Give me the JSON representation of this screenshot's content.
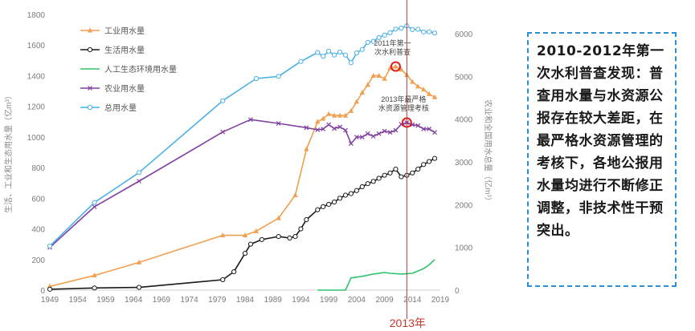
{
  "chart_data": {
    "type": "line",
    "title": "",
    "ylabel": "生活、工业和生态用水量（亿m³）",
    "y2label": "农业和全国用水总量（亿m³）",
    "xlim": [
      1949,
      2019
    ],
    "ylim": [
      0,
      1800
    ],
    "y2lim": [
      0,
      6450
    ],
    "xticks": [
      1949,
      1954,
      1959,
      1964,
      1969,
      1974,
      1979,
      1984,
      1989,
      1994,
      1999,
      2004,
      2009,
      2014,
      2019
    ],
    "yticks": [
      0,
      200,
      400,
      600,
      800,
      1000,
      1200,
      1400,
      1600,
      1800
    ],
    "y2ticks": [
      0,
      1000,
      2000,
      3000,
      4000,
      5000,
      6000
    ],
    "grid": false,
    "legend_position": "top-left",
    "series": [
      {
        "name": "工业用水量",
        "axis": "left",
        "color": "#f0a050",
        "marker": "triangle",
        "points": [
          [
            1949,
            24
          ],
          [
            1957,
            96
          ],
          [
            1965,
            181
          ],
          [
            1980,
            358
          ],
          [
            1984,
            358
          ],
          [
            1986,
            385
          ],
          [
            1990,
            470
          ],
          [
            1993,
            620
          ],
          [
            1995,
            920
          ],
          [
            1997,
            1100
          ],
          [
            1998,
            1120
          ],
          [
            1999,
            1150
          ],
          [
            2000,
            1140
          ],
          [
            2001,
            1140
          ],
          [
            2002,
            1140
          ],
          [
            2003,
            1170
          ],
          [
            2004,
            1230
          ],
          [
            2005,
            1290
          ],
          [
            2006,
            1340
          ],
          [
            2007,
            1400
          ],
          [
            2008,
            1400
          ],
          [
            2009,
            1380
          ],
          [
            2010,
            1450
          ],
          [
            2011,
            1460
          ],
          [
            2012,
            1440
          ],
          [
            2013,
            1405
          ],
          [
            2014,
            1360
          ],
          [
            2015,
            1330
          ],
          [
            2016,
            1310
          ],
          [
            2017,
            1280
          ],
          [
            2018,
            1260
          ]
        ]
      },
      {
        "name": "生活用水量",
        "axis": "left",
        "color": "#1a1a1a",
        "marker": "circle",
        "points": [
          [
            1949,
            6
          ],
          [
            1957,
            14
          ],
          [
            1965,
            18
          ],
          [
            1980,
            68
          ],
          [
            1982,
            120
          ],
          [
            1984,
            240
          ],
          [
            1985,
            300
          ],
          [
            1987,
            330
          ],
          [
            1990,
            350
          ],
          [
            1992,
            340
          ],
          [
            1993,
            350
          ],
          [
            1994,
            400
          ],
          [
            1995,
            460
          ],
          [
            1997,
            525
          ],
          [
            1998,
            545
          ],
          [
            1999,
            560
          ],
          [
            2000,
            575
          ],
          [
            2001,
            600
          ],
          [
            2002,
            620
          ],
          [
            2003,
            630
          ],
          [
            2004,
            650
          ],
          [
            2005,
            675
          ],
          [
            2006,
            695
          ],
          [
            2007,
            710
          ],
          [
            2008,
            730
          ],
          [
            2009,
            750
          ],
          [
            2010,
            765
          ],
          [
            2011,
            790
          ],
          [
            2012,
            740
          ],
          [
            2013,
            750
          ],
          [
            2014,
            765
          ],
          [
            2015,
            790
          ],
          [
            2016,
            820
          ],
          [
            2017,
            840
          ],
          [
            2018,
            860
          ]
        ]
      },
      {
        "name": "人工生态环境用水量",
        "axis": "left",
        "color": "#2ec36b",
        "marker": "none",
        "points": [
          [
            1997,
            0
          ],
          [
            2002,
            0
          ],
          [
            2003,
            80
          ],
          [
            2005,
            90
          ],
          [
            2007,
            105
          ],
          [
            2009,
            115
          ],
          [
            2010,
            110
          ],
          [
            2012,
            105
          ],
          [
            2014,
            110
          ],
          [
            2016,
            140
          ],
          [
            2017,
            165
          ],
          [
            2018,
            200
          ]
        ]
      },
      {
        "name": "农业用水量",
        "axis": "right",
        "color": "#8040a0",
        "marker": "cross",
        "points": [
          [
            1949,
            1000
          ],
          [
            1957,
            1950
          ],
          [
            1965,
            2550
          ],
          [
            1980,
            3700
          ],
          [
            1985,
            3990
          ],
          [
            1990,
            3900
          ],
          [
            1995,
            3800
          ],
          [
            1997,
            3750
          ],
          [
            1998,
            3770
          ],
          [
            1999,
            3870
          ],
          [
            2000,
            3780
          ],
          [
            2001,
            3820
          ],
          [
            2002,
            3740
          ],
          [
            2003,
            3430
          ],
          [
            2004,
            3580
          ],
          [
            2005,
            3580
          ],
          [
            2006,
            3660
          ],
          [
            2007,
            3600
          ],
          [
            2008,
            3660
          ],
          [
            2009,
            3720
          ],
          [
            2010,
            3690
          ],
          [
            2011,
            3740
          ],
          [
            2012,
            3880
          ],
          [
            2013,
            3920
          ],
          [
            2014,
            3870
          ],
          [
            2015,
            3850
          ],
          [
            2016,
            3770
          ],
          [
            2017,
            3770
          ],
          [
            2018,
            3690
          ]
        ]
      },
      {
        "name": "总用水量",
        "axis": "right",
        "color": "#4ab0e8",
        "marker": "circle",
        "points": [
          [
            1949,
            1030
          ],
          [
            1957,
            2050
          ],
          [
            1965,
            2750
          ],
          [
            1980,
            4430
          ],
          [
            1986,
            4950
          ],
          [
            1990,
            5000
          ],
          [
            1994,
            5350
          ],
          [
            1997,
            5560
          ],
          [
            1998,
            5470
          ],
          [
            1999,
            5590
          ],
          [
            2000,
            5500
          ],
          [
            2001,
            5570
          ],
          [
            2002,
            5500
          ],
          [
            2003,
            5320
          ],
          [
            2004,
            5550
          ],
          [
            2005,
            5630
          ],
          [
            2006,
            5795
          ],
          [
            2007,
            5820
          ],
          [
            2008,
            5910
          ],
          [
            2009,
            5965
          ],
          [
            2010,
            6022
          ],
          [
            2011,
            6107
          ],
          [
            2012,
            6130
          ],
          [
            2013,
            6183
          ],
          [
            2014,
            6095
          ],
          [
            2015,
            6103
          ],
          [
            2016,
            6040
          ],
          [
            2017,
            6043
          ],
          [
            2018,
            6015
          ]
        ]
      }
    ],
    "annotations": [
      {
        "lines": [
          "2011年第一",
          "次水利普查"
        ],
        "x": 2011,
        "y": 1460,
        "axis": "left"
      },
      {
        "lines": [
          "2013年最严格",
          "水资源管理考核"
        ],
        "x": 2013,
        "y": 3920,
        "axis": "right"
      }
    ],
    "marker_year": 2013,
    "marker_year_label": "2013年"
  },
  "callout": {
    "text": "2010-2012年第一次水利普查发现：普查用水量与水资源公报存在较大差距，在最严格水资源管理的考核下，各地公报用水量均进行不断修正调整，非技术性干预突出。"
  }
}
